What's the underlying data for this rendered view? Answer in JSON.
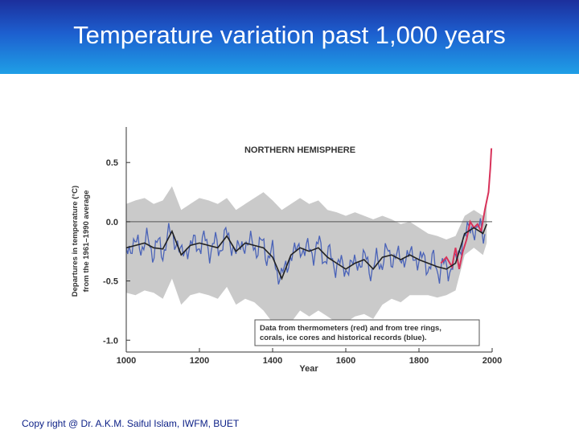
{
  "slide": {
    "title": "Temperature variation past 1,000 years",
    "footer": "Copy right @ Dr. A.K.M. Saiful Islam, IWFM, BUET"
  },
  "colors": {
    "title_gradient_top": "#1c2f9c",
    "title_gradient_bottom": "#1f9fe6",
    "uncertainty_band": "#c4c4c4",
    "proxy_series": "#4a63b8",
    "instrumental_series": "#d8325a",
    "smoothed_series": "#222222"
  },
  "chart_data": {
    "type": "line",
    "title": "NORTHERN HEMISPHERE",
    "xlabel": "Year",
    "ylabel_lines": [
      "Departures in temperature (°C)",
      "from the 1961–1990 average"
    ],
    "xlim": [
      1000,
      2000
    ],
    "ylim": [
      -1.1,
      0.8
    ],
    "x_ticks": [
      1000,
      1200,
      1400,
      1600,
      1800,
      2000
    ],
    "y_ticks": [
      0.5,
      0.0,
      -0.5,
      -1.0
    ],
    "x_tick_labels": [
      "1000",
      "1200",
      "1400",
      "1600",
      "1800",
      "2000"
    ],
    "y_tick_labels": [
      "0.5",
      "0.0",
      "-0.5",
      "-1.0"
    ],
    "reference_line_y": 0.0,
    "annotation_lines": [
      "Data from thermometers (red) and from tree rings,",
      "corals, ice cores and historical records (blue)."
    ],
    "legend_placement": "bottom-right",
    "x": [
      1000,
      1025,
      1050,
      1075,
      1100,
      1125,
      1150,
      1175,
      1200,
      1225,
      1250,
      1275,
      1300,
      1325,
      1350,
      1375,
      1400,
      1425,
      1450,
      1475,
      1500,
      1525,
      1550,
      1575,
      1600,
      1625,
      1650,
      1675,
      1700,
      1725,
      1750,
      1775,
      1800,
      1825,
      1850,
      1875,
      1900,
      1925,
      1950,
      1975,
      1985
    ],
    "series": [
      {
        "role": "smoothed",
        "values": [
          -0.22,
          -0.2,
          -0.18,
          -0.22,
          -0.23,
          -0.08,
          -0.28,
          -0.2,
          -0.18,
          -0.2,
          -0.22,
          -0.12,
          -0.25,
          -0.18,
          -0.2,
          -0.22,
          -0.3,
          -0.48,
          -0.28,
          -0.22,
          -0.25,
          -0.22,
          -0.3,
          -0.35,
          -0.4,
          -0.35,
          -0.32,
          -0.4,
          -0.3,
          -0.28,
          -0.32,
          -0.28,
          -0.32,
          -0.35,
          -0.38,
          -0.4,
          -0.35,
          -0.1,
          -0.05,
          -0.1,
          -0.02
        ]
      },
      {
        "role": "uncertainty_upper",
        "values": [
          0.15,
          0.18,
          0.2,
          0.15,
          0.18,
          0.3,
          0.1,
          0.15,
          0.2,
          0.18,
          0.15,
          0.2,
          0.1,
          0.15,
          0.2,
          0.25,
          0.18,
          0.1,
          0.15,
          0.2,
          0.15,
          0.18,
          0.1,
          0.08,
          0.05,
          0.08,
          0.05,
          0.02,
          0.05,
          0.02,
          -0.02,
          0.0,
          -0.05,
          -0.1,
          -0.12,
          -0.15,
          -0.12,
          0.05,
          0.1,
          0.05,
          0.15
        ]
      },
      {
        "role": "uncertainty_lower",
        "values": [
          -0.6,
          -0.62,
          -0.58,
          -0.6,
          -0.65,
          -0.48,
          -0.7,
          -0.62,
          -0.6,
          -0.62,
          -0.65,
          -0.55,
          -0.7,
          -0.65,
          -0.68,
          -0.75,
          -0.85,
          -1.0,
          -0.85,
          -0.75,
          -0.8,
          -0.75,
          -0.8,
          -0.85,
          -0.85,
          -0.8,
          -0.78,
          -0.82,
          -0.7,
          -0.65,
          -0.68,
          -0.62,
          -0.62,
          -0.62,
          -0.64,
          -0.62,
          -0.58,
          -0.28,
          -0.22,
          -0.28,
          -0.18
        ]
      },
      {
        "role": "instrumental",
        "x": [
          1860,
          1875,
          1890,
          1900,
          1910,
          1920,
          1930,
          1940,
          1950,
          1960,
          1970,
          1980,
          1990,
          1995,
          1998
        ],
        "values": [
          -0.35,
          -0.3,
          -0.38,
          -0.22,
          -0.4,
          -0.25,
          -0.15,
          0.0,
          -0.05,
          -0.02,
          -0.08,
          0.1,
          0.25,
          0.45,
          0.62
        ]
      }
    ]
  }
}
